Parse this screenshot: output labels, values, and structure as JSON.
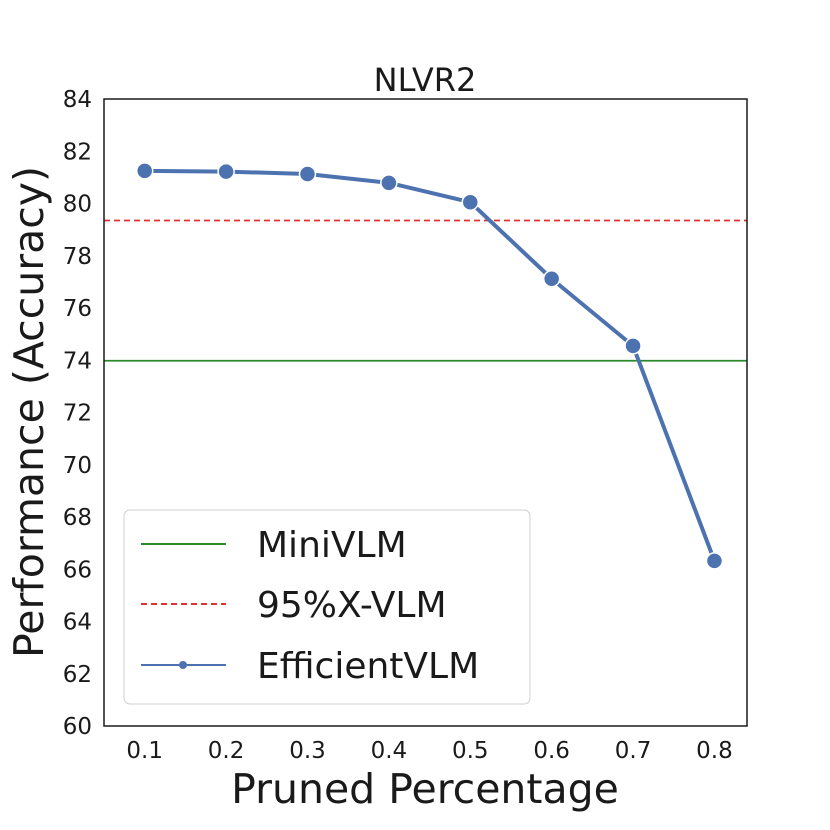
{
  "chart_data": {
    "type": "line",
    "title": "NLVR2",
    "xlabel": "Pruned Percentage",
    "ylabel": "Performance (Accuracy)",
    "x": [
      0.1,
      0.2,
      0.3,
      0.4,
      0.5,
      0.6,
      0.7,
      0.8
    ],
    "x_tick_labels": [
      "0.1",
      "0.2",
      "0.3",
      "0.4",
      "0.5",
      "0.6",
      "0.7",
      "0.8"
    ],
    "xlim": [
      0.05,
      0.84
    ],
    "ylim": [
      60,
      84
    ],
    "y_ticks": [
      60,
      62,
      64,
      66,
      68,
      70,
      72,
      74,
      76,
      78,
      80,
      82,
      84
    ],
    "y_tick_labels": [
      "60",
      "62",
      "64",
      "66",
      "68",
      "70",
      "72",
      "74",
      "76",
      "78",
      "80",
      "82",
      "84"
    ],
    "grid": false,
    "legend_position": "lower-left",
    "series": [
      {
        "name": "EfficientVLM",
        "values": [
          81.25,
          81.22,
          81.13,
          80.79,
          80.05,
          77.12,
          74.55,
          66.32
        ],
        "color": "#4c72b0",
        "style": "line-with-markers"
      }
    ],
    "reference_lines": [
      {
        "name": "MiniVLM",
        "value": 73.98,
        "color": "#2a8a2a",
        "style": "solid"
      },
      {
        "name": "95%X-VLM",
        "value": 79.35,
        "color": "#e03030",
        "style": "dashed"
      }
    ],
    "legend": [
      "MiniVLM",
      "95%X-VLM",
      "EfficientVLM"
    ]
  }
}
